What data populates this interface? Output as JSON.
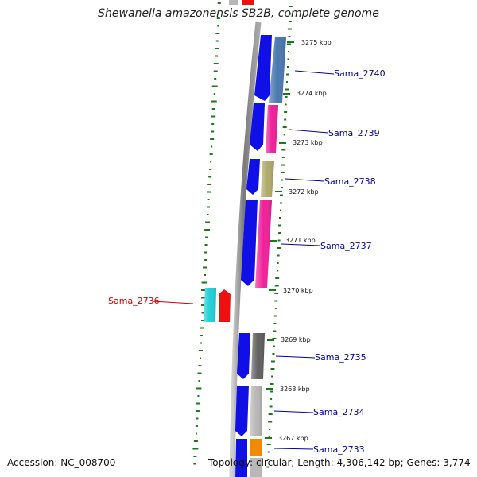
{
  "title": "Shewanella amazonensis SB2B, complete genome",
  "accession_text": "Accession: NC_008700",
  "summary_text": "Topology: circular; Length: 4,306,142 bp; Genes: 3,774",
  "colors": {
    "forward_cds": "#1010e6",
    "label_forward": "#0000aa",
    "label_reverse": "#cc0000",
    "backbone": "#8a8a8a",
    "gc_dashes": "#1a7a1a"
  },
  "position_markers": [
    "3275 kbp",
    "3274 kbp",
    "3273 kbp",
    "3272 kbp",
    "3271 kbp",
    "3270 kbp",
    "3269 kbp",
    "3268 kbp",
    "3267 kbp"
  ],
  "gene_labels": [
    {
      "text": "Sama_2740",
      "strand": "forward"
    },
    {
      "text": "Sama_2739",
      "strand": "forward"
    },
    {
      "text": "Sama_2738",
      "strand": "forward"
    },
    {
      "text": "Sama_2737",
      "strand": "forward"
    },
    {
      "text": "Sama_2736",
      "strand": "reverse"
    },
    {
      "text": "Sama_2735",
      "strand": "forward"
    },
    {
      "text": "Sama_2734",
      "strand": "forward"
    },
    {
      "text": "Sama_2733",
      "strand": "forward"
    }
  ],
  "feature_colors": {
    "cog_2740": "#4a78b0",
    "cog_2739": "#f0209a",
    "cog_2738": "#b0aa6a",
    "cog_2737": "#f0209a",
    "cog_2736_a": "#20d0d8",
    "cog_2736_b": "#ee1010",
    "cog_2735": "#606060",
    "cog_2734": "#b8b8b8",
    "cog_2733": "#f08a00",
    "top_partial_gray": "#b8b8b8",
    "top_partial_red": "#ee1010",
    "bottom_partial_gray": "#b8b8b8"
  }
}
